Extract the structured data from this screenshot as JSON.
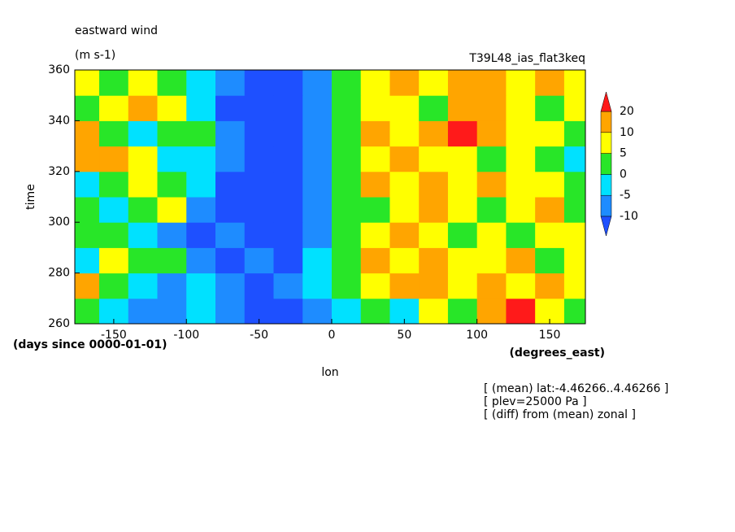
{
  "chart_data": {
    "type": "contourf",
    "title": "eastward wind",
    "units": "(m s-1)",
    "subtitle": "T39L48_ias_flat3keq",
    "xlabel": "lon",
    "xunits": "(degrees_east)",
    "ylabel": "time",
    "yunits": "(days since 0000-01-01)",
    "notes": [
      "[ (mean) lat:-4.46266..4.46266 ]",
      "[ plev=25000 Pa ]",
      "[ (diff) from (mean) zonal ]"
    ],
    "xlim": [
      -176.8,
      174.6
    ],
    "xticks": [
      -150,
      -100,
      -50,
      0,
      50,
      100,
      150
    ],
    "ylim": [
      260,
      360
    ],
    "yticks": [
      260,
      280,
      300,
      320,
      340,
      360
    ],
    "levels": [
      -10,
      -5,
      0,
      5,
      10,
      20
    ],
    "colors": [
      "#1e50ff",
      "#1e8cff",
      "#00e1ff",
      "#28e628",
      "#ffff00",
      "#ffa500",
      "#ff1a1a"
    ],
    "x": [
      -170,
      -150,
      -130,
      -110,
      -90,
      -70,
      -50,
      -30,
      -10,
      10,
      30,
      50,
      70,
      90,
      110,
      130,
      150,
      170
    ],
    "y": [
      265,
      275,
      285,
      295,
      305,
      315,
      325,
      335,
      345,
      355
    ],
    "z": [
      [
        3,
        -3,
        -6,
        -8,
        -4,
        -9,
        -12,
        -11,
        -6,
        -3,
        4,
        -4,
        6,
        4,
        12,
        21,
        6,
        2
      ],
      [
        12,
        4,
        -4,
        -6,
        -3,
        -10,
        -12,
        -9,
        -5,
        3,
        5,
        12,
        10,
        7,
        12,
        9,
        11,
        5
      ],
      [
        -2,
        8,
        4,
        1,
        -6,
        -11,
        -7,
        -12,
        -5,
        4,
        10,
        8,
        12,
        6,
        8,
        10,
        3,
        9
      ],
      [
        4,
        2,
        -5,
        -8,
        -12,
        -8,
        -12,
        -11,
        -6,
        3,
        6,
        12,
        8,
        3,
        9,
        4,
        7,
        6
      ],
      [
        2,
        -4,
        3,
        8,
        -8,
        -11,
        -13,
        -12,
        -6,
        2,
        4,
        8,
        12,
        7,
        3,
        6,
        12,
        2
      ],
      [
        -3,
        2,
        5,
        1,
        -4,
        -12,
        -12,
        -11,
        -7,
        2,
        12,
        8,
        10,
        6,
        11,
        8,
        7,
        4
      ],
      [
        10,
        12,
        5,
        -2,
        -4,
        -7,
        -11,
        -12,
        -7,
        2,
        8,
        10,
        6,
        8,
        4,
        9,
        3,
        -2
      ],
      [
        12,
        4,
        -2,
        2,
        3,
        -6,
        -11,
        -12,
        -8,
        4,
        14,
        8,
        12,
        22,
        12,
        8,
        6,
        4
      ],
      [
        2,
        6,
        12,
        6,
        -2,
        -11,
        -12,
        -12,
        -8,
        3,
        8,
        6,
        4,
        10,
        12,
        5,
        2,
        8
      ],
      [
        8,
        3,
        7,
        2,
        -3,
        -8,
        -12,
        -11,
        -6,
        2,
        7,
        12,
        8,
        12,
        10,
        7,
        12,
        8
      ]
    ]
  }
}
